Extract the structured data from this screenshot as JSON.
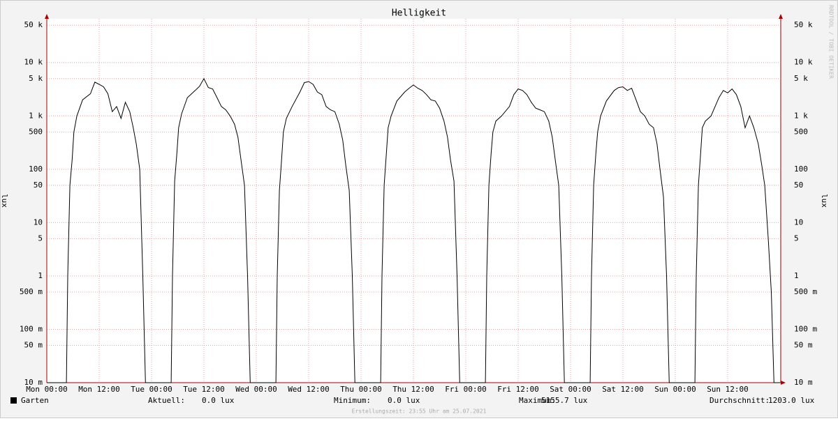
{
  "chart_data": {
    "type": "line",
    "title": "Helligkeit",
    "y_label": "lux",
    "log_scale": true,
    "grid": true,
    "watermark": "RRDTOOL / TOBI OETIKER",
    "footer": "Erstellungszeit: 23:55 Uhr am 25.07.2021",
    "xlim": [
      0,
      168
    ],
    "xticks": [
      {
        "value": 0,
        "label": "Mon 00:00"
      },
      {
        "value": 12,
        "label": "Mon 12:00"
      },
      {
        "value": 24,
        "label": "Tue 00:00"
      },
      {
        "value": 36,
        "label": "Tue 12:00"
      },
      {
        "value": 48,
        "label": "Wed 00:00"
      },
      {
        "value": 60,
        "label": "Wed 12:00"
      },
      {
        "value": 72,
        "label": "Thu 00:00"
      },
      {
        "value": 84,
        "label": "Thu 12:00"
      },
      {
        "value": 96,
        "label": "Fri 00:00"
      },
      {
        "value": 108,
        "label": "Fri 12:00"
      },
      {
        "value": 120,
        "label": "Sat 00:00"
      },
      {
        "value": 132,
        "label": "Sat 12:00"
      },
      {
        "value": 144,
        "label": "Sun 00:00"
      },
      {
        "value": 156,
        "label": "Sun 12:00"
      }
    ],
    "ylim": [
      0.01,
      66000
    ],
    "yticks": [
      {
        "value": 50000,
        "label": "50 k"
      },
      {
        "value": 10000,
        "label": "10 k"
      },
      {
        "value": 5000,
        "label": "5 k"
      },
      {
        "value": 1000,
        "label": "1 k"
      },
      500,
      100,
      50,
      10,
      5,
      1,
      {
        "value": 0.5,
        "label": "500 m"
      },
      {
        "value": 0.1,
        "label": "100 m"
      },
      {
        "value": 0.05,
        "label": "50 m"
      },
      {
        "value": 0.01,
        "label": "10 m"
      }
    ],
    "x": [
      0,
      4.5,
      4.8,
      5.3,
      5.8,
      6.2,
      6.9,
      8.2,
      10,
      11,
      12,
      13,
      14,
      15,
      16,
      17,
      18,
      19,
      19.8,
      20.5,
      21.3,
      22,
      22.6,
      28.5,
      28.8,
      29.3,
      29.8,
      30.2,
      30.9,
      32.2,
      34,
      35,
      36,
      37,
      38,
      39,
      40,
      41,
      42,
      43,
      43.8,
      44.5,
      45.3,
      46,
      46.6,
      52.5,
      52.8,
      53.3,
      53.8,
      54.2,
      54.9,
      56.2,
      58,
      59,
      60,
      61,
      62,
      63,
      64,
      65,
      66,
      67,
      67.8,
      68.5,
      69.3,
      70,
      70.6,
      76.5,
      76.8,
      77.3,
      77.8,
      78.2,
      78.9,
      80.2,
      82,
      83,
      84,
      85,
      86,
      87,
      88,
      89,
      90,
      91,
      91.8,
      92.5,
      93.3,
      94,
      94.6,
      100.5,
      100.8,
      101.3,
      101.8,
      102.2,
      102.9,
      104.2,
      106,
      107,
      108,
      109,
      110,
      111,
      112,
      113,
      114,
      115,
      115.8,
      116.5,
      117.3,
      118,
      118.6,
      124.5,
      124.8,
      125.3,
      125.8,
      126.2,
      126.9,
      128.2,
      130,
      131,
      132,
      133,
      134,
      135,
      136,
      137,
      138,
      139,
      139.8,
      140.5,
      141.3,
      142,
      142.6,
      148.5,
      148.8,
      149.3,
      149.8,
      150.2,
      150.9,
      152.2,
      154,
      155,
      156,
      157,
      158,
      159,
      160,
      161,
      162,
      163,
      163.8,
      164.5,
      165.3,
      166,
      166.6,
      168
    ],
    "series": [
      {
        "name": "Garten",
        "color": "#000000",
        "values": [
          0,
          0,
          1,
          50,
          150,
          500,
          1000,
          2000,
          2600,
          4300,
          3900,
          3500,
          2600,
          1200,
          1500,
          900,
          1800,
          1200,
          600,
          300,
          100,
          1,
          0,
          0,
          1,
          60,
          200,
          600,
          1100,
          2200,
          3000,
          3600,
          5000,
          3400,
          3200,
          2200,
          1500,
          1300,
          1000,
          700,
          400,
          150,
          50,
          1,
          0,
          0,
          1,
          40,
          150,
          500,
          900,
          1500,
          2800,
          4200,
          4400,
          3900,
          2800,
          2500,
          1500,
          1300,
          1200,
          700,
          350,
          120,
          40,
          1,
          0,
          0,
          1,
          50,
          200,
          600,
          1000,
          1900,
          2800,
          3300,
          3800,
          3300,
          3000,
          2500,
          2000,
          1900,
          1400,
          800,
          400,
          150,
          60,
          1,
          0,
          0,
          1,
          50,
          200,
          500,
          800,
          1000,
          1500,
          2500,
          3200,
          3000,
          2500,
          1800,
          1400,
          1300,
          1200,
          800,
          400,
          150,
          50,
          1,
          0,
          0,
          1,
          50,
          200,
          500,
          1000,
          1900,
          3000,
          3400,
          3500,
          3000,
          3300,
          2000,
          1200,
          1000,
          700,
          600,
          300,
          100,
          30,
          1,
          0,
          0,
          1,
          50,
          200,
          600,
          800,
          1000,
          2200,
          3000,
          2700,
          3200,
          2500,
          1500,
          600,
          1000,
          600,
          300,
          120,
          50,
          5,
          0.5,
          0,
          0
        ]
      }
    ],
    "stats": [
      {
        "label": "Aktuell:",
        "value": "0.0 lux"
      },
      {
        "label": "Minimum:",
        "value": "0.0 lux"
      },
      {
        "label": "Maximum:",
        "value": "5155.7 lux"
      },
      {
        "label": "Durchschnitt:",
        "value": "1203.0 lux"
      }
    ]
  }
}
